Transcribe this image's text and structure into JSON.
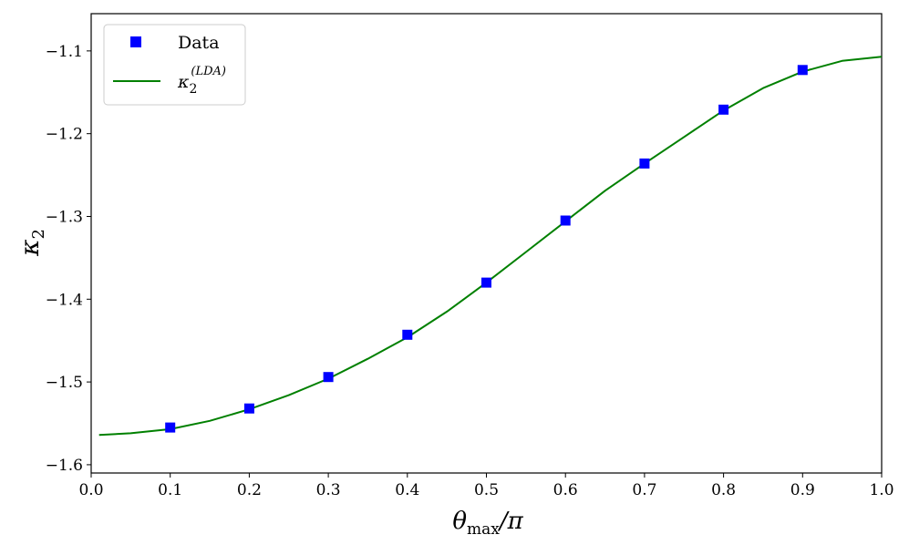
{
  "chart_data": {
    "type": "scatter",
    "xlim": [
      0.0,
      1.0
    ],
    "ylim": [
      -1.61,
      -1.055
    ],
    "xticks": [
      {
        "value": 0.0,
        "label": "0.0"
      },
      {
        "value": 0.1,
        "label": "0.1"
      },
      {
        "value": 0.2,
        "label": "0.2"
      },
      {
        "value": 0.3,
        "label": "0.3"
      },
      {
        "value": 0.4,
        "label": "0.4"
      },
      {
        "value": 0.5,
        "label": "0.5"
      },
      {
        "value": 0.6,
        "label": "0.6"
      },
      {
        "value": 0.7,
        "label": "0.7"
      },
      {
        "value": 0.8,
        "label": "0.8"
      },
      {
        "value": 0.9,
        "label": "0.9"
      },
      {
        "value": 1.0,
        "label": "1.0"
      }
    ],
    "yticks": [
      {
        "value": -1.6,
        "label": "−1.6"
      },
      {
        "value": -1.5,
        "label": "−1.5"
      },
      {
        "value": -1.4,
        "label": "−1.4"
      },
      {
        "value": -1.3,
        "label": "−1.3"
      },
      {
        "value": -1.2,
        "label": "−1.2"
      },
      {
        "value": -1.1,
        "label": "−1.1"
      }
    ],
    "xlabel": {
      "main": "θ",
      "sub": "max",
      "suffix": "/π"
    },
    "ylabel": {
      "main": "κ",
      "sub": "2"
    },
    "grid": false,
    "legend_position": "top-left",
    "series": [
      {
        "name": "Data",
        "kind": "markers",
        "marker": "square",
        "color": "#0000ff",
        "x": [
          0.1,
          0.2,
          0.3,
          0.4,
          0.5,
          0.6,
          0.7,
          0.8,
          0.9
        ],
        "y": [
          -1.555,
          -1.532,
          -1.494,
          -1.443,
          -1.38,
          -1.305,
          -1.236,
          -1.171,
          -1.123
        ]
      },
      {
        "name_main": "κ",
        "name_sub": "2",
        "name_sup": "(LDA)",
        "kind": "line",
        "color": "#008000",
        "x": [
          0.01,
          0.05,
          0.1,
          0.15,
          0.2,
          0.25,
          0.3,
          0.35,
          0.4,
          0.45,
          0.5,
          0.55,
          0.6,
          0.65,
          0.7,
          0.75,
          0.8,
          0.85,
          0.9,
          0.95,
          1.0
        ],
        "y": [
          -1.564,
          -1.562,
          -1.557,
          -1.547,
          -1.533,
          -1.516,
          -1.496,
          -1.472,
          -1.446,
          -1.415,
          -1.38,
          -1.343,
          -1.306,
          -1.269,
          -1.236,
          -1.204,
          -1.172,
          -1.145,
          -1.125,
          -1.112,
          -1.107
        ]
      }
    ]
  }
}
